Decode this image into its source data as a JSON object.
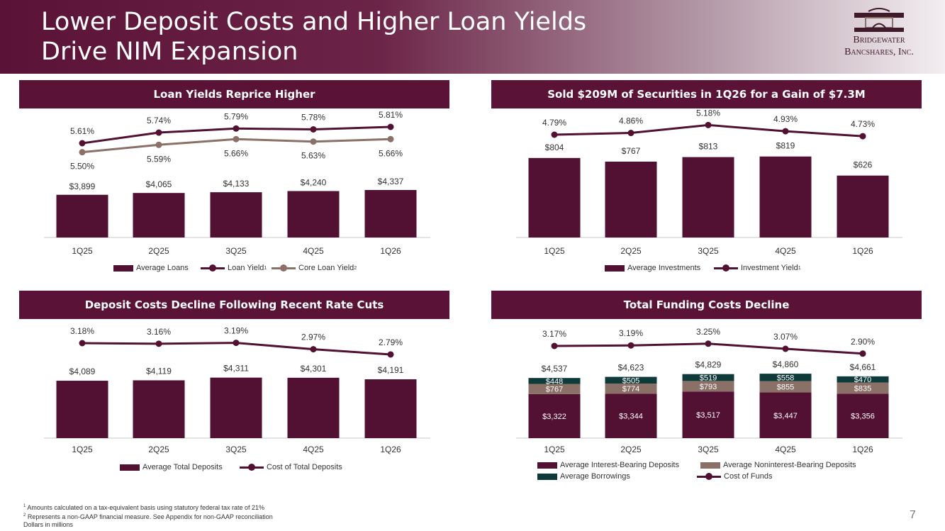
{
  "title_lines": [
    "Lower Deposit Costs and Higher Loan Yields",
    "Drive NIM Expansion"
  ],
  "logo": {
    "line1": "Bridgewater",
    "line2": "Bancshares, Inc."
  },
  "colors": {
    "maroon": "#5a1236",
    "taupe": "#8b7068",
    "teal": "#0f3a3a",
    "bar": "#521033"
  },
  "panels": {
    "loans": {
      "title": "Loan Yields Reprice Higher",
      "legend": [
        "Average Loans",
        "Loan Yield",
        "Core Loan Yield"
      ]
    },
    "securities": {
      "title": "Sold $209M of Securities in 1Q26 for a Gain of $7.3M",
      "legend": [
        "Average Investments",
        "Investment Yield"
      ]
    },
    "deposits": {
      "title": "Deposit Costs Decline Following Recent Rate Cuts",
      "legend": [
        "Average Total Deposits",
        "Cost of Total Deposits"
      ]
    },
    "funding": {
      "title": "Total Funding Costs Decline",
      "legend": [
        "Average Interest-Bearing Deposits",
        "Average Noninterest-Bearing Deposits",
        "Average Borrowings",
        "Cost of Funds"
      ]
    }
  },
  "chart_data": [
    {
      "type": "bar",
      "title": "Loan Yields Reprice Higher",
      "categories": [
        "1Q25",
        "2Q25",
        "3Q25",
        "4Q25",
        "1Q26"
      ],
      "series": [
        {
          "name": "Average Loans",
          "values": [
            3899,
            4065,
            4133,
            4240,
            4337
          ],
          "labels": [
            "$3,899",
            "$4,065",
            "$4,133",
            "$4,240",
            "$4,337"
          ]
        },
        {
          "name": "Loan Yield",
          "values": [
            5.61,
            5.74,
            5.79,
            5.78,
            5.81
          ],
          "labels": [
            "5.61%",
            "5.74%",
            "5.79%",
            "5.78%",
            "5.81%"
          ]
        },
        {
          "name": "Core Loan Yield",
          "values": [
            5.5,
            5.59,
            5.66,
            5.63,
            5.66
          ],
          "labels": [
            "5.50%",
            "5.59%",
            "5.66%",
            "5.63%",
            "5.66%"
          ]
        }
      ]
    },
    {
      "type": "bar",
      "title": "Sold $209M of Securities in 1Q26 for a Gain of $7.3M",
      "categories": [
        "1Q25",
        "2Q25",
        "3Q25",
        "4Q25",
        "1Q26"
      ],
      "series": [
        {
          "name": "Average Investments",
          "values": [
            804,
            767,
            813,
            819,
            626
          ],
          "labels": [
            "$804",
            "$767",
            "$813",
            "$819",
            "$626"
          ]
        },
        {
          "name": "Investment Yield",
          "values": [
            4.79,
            4.86,
            5.18,
            4.93,
            4.73
          ],
          "labels": [
            "4.79%",
            "4.86%",
            "5.18%",
            "4.93%",
            "4.73%"
          ]
        }
      ]
    },
    {
      "type": "bar",
      "title": "Deposit Costs Decline Following Recent Rate Cuts",
      "categories": [
        "1Q25",
        "2Q25",
        "3Q25",
        "4Q25",
        "1Q26"
      ],
      "series": [
        {
          "name": "Average Total Deposits",
          "values": [
            4089,
            4119,
            4311,
            4301,
            4191
          ],
          "labels": [
            "$4,089",
            "$4,119",
            "$4,311",
            "$4,301",
            "$4,191"
          ]
        },
        {
          "name": "Cost of Total Deposits",
          "values": [
            3.18,
            3.16,
            3.19,
            2.97,
            2.79
          ],
          "labels": [
            "3.18%",
            "3.16%",
            "3.19%",
            "2.97%",
            "2.79%"
          ]
        }
      ]
    },
    {
      "type": "bar",
      "title": "Total Funding Costs Decline",
      "categories": [
        "1Q25",
        "2Q25",
        "3Q25",
        "4Q25",
        "1Q26"
      ],
      "totals": [
        4537,
        4623,
        4829,
        4860,
        4661
      ],
      "total_labels": [
        "$4,537",
        "$4,623",
        "$4,829",
        "$4,860",
        "$4,661"
      ],
      "series": [
        {
          "name": "Average Interest-Bearing Deposits",
          "values": [
            3322,
            3344,
            3517,
            3447,
            3356
          ],
          "labels": [
            "$3,322",
            "$3,344",
            "$3,517",
            "$3,447",
            "$3,356"
          ]
        },
        {
          "name": "Average Noninterest-Bearing Deposits",
          "values": [
            767,
            774,
            793,
            855,
            835
          ],
          "labels": [
            "$767",
            "$774",
            "$793",
            "$855",
            "$835"
          ]
        },
        {
          "name": "Average Borrowings",
          "values": [
            448,
            505,
            519,
            558,
            470
          ],
          "labels": [
            "$448",
            "$505",
            "$519",
            "$558",
            "$470"
          ]
        },
        {
          "name": "Cost of Funds",
          "values": [
            3.17,
            3.19,
            3.25,
            3.07,
            2.9
          ],
          "labels": [
            "3.17%",
            "3.19%",
            "3.25%",
            "3.07%",
            "2.90%"
          ]
        }
      ]
    }
  ],
  "footnotes": [
    "Amounts calculated on a tax-equivalent basis using statutory federal tax rate of 21%",
    "Represents a non-GAAP financial measure. See Appendix for non-GAAP reconciliation",
    "Dollars in millions"
  ],
  "page_number": "7"
}
